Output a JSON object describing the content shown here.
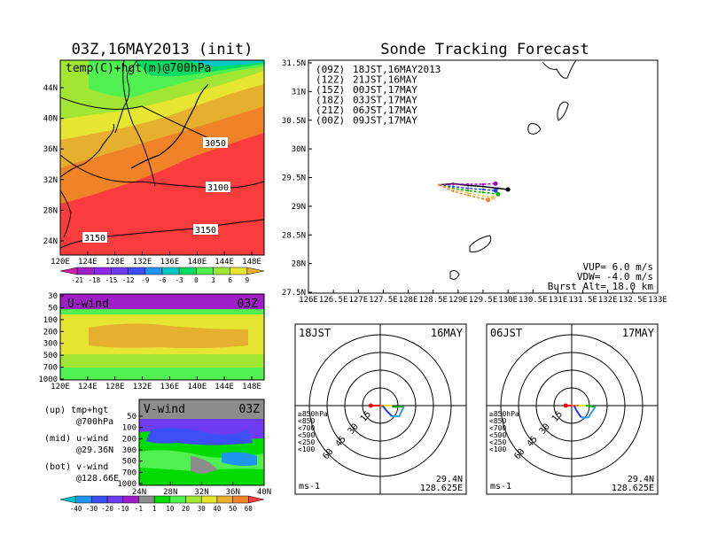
{
  "left_title": "03Z,16MAY2013 (init)",
  "right_title": "Sonde Tracking Forecast",
  "colors": {
    "temp": [
      "#d21ea8",
      "#a01ec8",
      "#8c28e6",
      "#6e3cf0",
      "#3c50f5",
      "#1e96f0",
      "#00c8c8",
      "#00dc64",
      "#50f050",
      "#a0e632",
      "#e6e632",
      "#e6af2d",
      "#f08228",
      "#fa3c3c"
    ],
    "wind": [
      "#00c8c8",
      "#1e96f0",
      "#3c50f5",
      "#6e3cf0",
      "#a01ec8",
      "#8c8c8c",
      "#00dc00",
      "#50f050",
      "#a0e632",
      "#e6e632",
      "#e6af2d",
      "#f08228",
      "#fa3c3c"
    ],
    "tracks": [
      "#000000",
      "#a000c8",
      "#1e3cff",
      "#00b400",
      "#f0c850",
      "#f08228"
    ]
  },
  "map_panel": {
    "label": "temp(C)+hgt(m)@700hPa",
    "lat_ticks": [
      "44N",
      "40N",
      "36N",
      "32N",
      "28N",
      "24N"
    ],
    "lon_ticks": [
      "120E",
      "124E",
      "128E",
      "132E",
      "136E",
      "140E",
      "144E",
      "148E"
    ],
    "contour_labels": [
      "3050",
      "3100",
      "3150",
      "3150"
    ],
    "colorbar_labels": [
      "-21",
      "-18",
      "-15",
      "-12",
      "-9",
      "-6",
      "-3",
      "0",
      "3",
      "6",
      "9"
    ]
  },
  "u_panel": {
    "label": "U-wind",
    "time": "03Z",
    "p_ticks": [
      "30",
      "50",
      "100",
      "200",
      "300",
      "500",
      "700",
      "1000"
    ],
    "lon_ticks": [
      "120E",
      "124E",
      "128E",
      "132E",
      "136E",
      "140E",
      "144E",
      "148E"
    ]
  },
  "v_panel": {
    "label": "V-wind",
    "time": "03Z",
    "p_ticks": [
      "50",
      "100",
      "200",
      "300",
      "500",
      "700",
      "1000"
    ],
    "lat_ticks": [
      "24N",
      "28N",
      "32N",
      "36N",
      "40N"
    ]
  },
  "legend_notes": [
    {
      "line1": "(up) tmp+hgt",
      "line2": "@700hPa"
    },
    {
      "line1": "(mid) u-wind",
      "line2": "@29.36N"
    },
    {
      "line1": "(bot) v-wind",
      "line2": "@128.66E"
    }
  ],
  "wind_colorbar_labels": [
    "-40",
    "-30",
    "-20",
    "-10",
    "-1",
    "1",
    "10",
    "20",
    "30",
    "40",
    "50",
    "60"
  ],
  "track_panel": {
    "legend": [
      {
        "code": "(09Z)",
        "time": "18JST,16MAY2013"
      },
      {
        "code": "(12Z)",
        "time": "21JST,16MAY"
      },
      {
        "code": "(15Z)",
        "time": "00JST,17MAY"
      },
      {
        "code": "(18Z)",
        "time": "03JST,17MAY"
      },
      {
        "code": "(21Z)",
        "time": "06JST,17MAY"
      },
      {
        "code": "(00Z)",
        "time": "09JST,17MAY"
      }
    ],
    "lat_ticks": [
      "31.5N",
      "31N",
      "30.5N",
      "30N",
      "29.5N",
      "29N",
      "28.5N",
      "28N",
      "27.5N"
    ],
    "lon_ticks": [
      "126E",
      "126.5E",
      "127E",
      "127.5E",
      "128E",
      "128.5E",
      "129E",
      "129.5E",
      "130E",
      "130.5E",
      "131E",
      "131.5E",
      "132E",
      "132.5E",
      "133E"
    ],
    "params": [
      "VUP= 6.0 m/s",
      "VDW= -4.0 m/s",
      "Burst Alt= 18.0 km"
    ]
  },
  "hodographs": [
    {
      "time": "18JST",
      "date": "16MAY",
      "lat": "29.4N",
      "lon": "128.625E",
      "unit": "ms-1",
      "rings": [
        "15",
        "30",
        "45",
        "60"
      ]
    },
    {
      "time": "06JST",
      "date": "17MAY",
      "lat": "29.4N",
      "lon": "128.625E",
      "unit": "ms-1",
      "rings": [
        "15",
        "30",
        "45",
        "60"
      ]
    }
  ],
  "hodo_levels": [
    "≥850hPa",
    "<850",
    "<700",
    "<500",
    "<250",
    "<100"
  ],
  "hodo_level_colors": [
    "#ff0000",
    "#f08228",
    "#e6e632",
    "#00b400",
    "#1ea0ff",
    "#1e3cff"
  ],
  "chart_data": [
    {
      "type": "heatmap",
      "title": "temp(C)+hgt(m)@700hPa",
      "x_range": [
        120,
        150
      ],
      "y_range": [
        22,
        48
      ],
      "xlabel": "",
      "ylabel": "",
      "colorbar": [
        -21,
        -18,
        -15,
        -12,
        -9,
        -6,
        -3,
        0,
        3,
        6,
        9
      ],
      "height_contours": [
        3050,
        3100,
        3150
      ]
    },
    {
      "type": "heatmap",
      "title": "U-wind",
      "x_range": [
        120,
        150
      ],
      "y_levels_hPa": [
        30,
        50,
        100,
        200,
        300,
        500,
        700,
        1000
      ]
    },
    {
      "type": "heatmap",
      "title": "V-wind",
      "x_range": [
        24,
        40
      ],
      "y_levels_hPa": [
        50,
        100,
        200,
        300,
        500,
        700,
        1000
      ],
      "colorbar": [
        -40,
        -30,
        -20,
        -10,
        -1,
        1,
        10,
        20,
        30,
        40,
        50,
        60
      ]
    },
    {
      "type": "line",
      "title": "Sonde Tracking Forecast",
      "xlim": [
        126,
        133
      ],
      "ylim": [
        27.5,
        31.5
      ],
      "series": [
        {
          "name": "(09Z) 18JST,16MAY2013",
          "lon": [
            128.62,
            128.9,
            129.2,
            129.5,
            129.8,
            130.0
          ],
          "lat": [
            29.36,
            29.38,
            29.35,
            29.33,
            29.3,
            29.28
          ]
        },
        {
          "name": "(12Z) 21JST,16MAY",
          "lon": [
            128.62,
            128.9,
            129.2,
            129.5,
            129.75
          ],
          "lat": [
            29.36,
            29.37,
            29.37,
            29.37,
            29.38
          ]
        },
        {
          "name": "(15Z) 00JST,17MAY",
          "lon": [
            128.62,
            128.9,
            129.2,
            129.5,
            129.75
          ],
          "lat": [
            29.36,
            29.33,
            29.3,
            29.28,
            29.26
          ]
        },
        {
          "name": "(18Z) 03JST,17MAY",
          "lon": [
            128.62,
            128.9,
            129.2,
            129.5,
            129.8
          ],
          "lat": [
            29.36,
            29.3,
            29.26,
            29.23,
            29.2
          ]
        },
        {
          "name": "(21Z) 06JST,17MAY",
          "lon": [
            128.62,
            128.9,
            129.2,
            129.5,
            129.7
          ],
          "lat": [
            29.36,
            29.28,
            29.22,
            29.17,
            29.14
          ]
        },
        {
          "name": "(00Z) 09JST,17MAY",
          "lon": [
            128.62,
            128.9,
            129.2,
            129.5,
            129.6
          ],
          "lat": [
            29.36,
            29.25,
            29.18,
            29.12,
            29.1
          ]
        }
      ],
      "params": {
        "VUP": 6.0,
        "VDW": -4.0,
        "burst_alt_km": 18.0
      }
    },
    {
      "type": "line",
      "title": "18JST 16MAY hodograph",
      "rings": [
        15,
        30,
        45,
        60
      ],
      "levels": [
        {
          "level": "≥850hPa",
          "u": [
            -8,
            -4,
            0
          ]
        },
        {
          "level": "<850",
          "u": [
            0,
            2
          ],
          "v": [
            0,
            -1
          ]
        },
        {
          "level": "<700",
          "u": [
            2,
            10
          ]
        },
        {
          "level": "<500",
          "u": [
            10,
            18,
            20
          ],
          "v": [
            -1,
            -1,
            -1
          ]
        },
        {
          "level": "<250",
          "u": [
            20,
            16,
            10
          ],
          "v": [
            -1,
            -9,
            -9
          ]
        },
        {
          "level": "<100",
          "u": [
            10,
            5,
            2
          ],
          "v": [
            -9,
            -4,
            0
          ]
        }
      ]
    },
    {
      "type": "line",
      "title": "06JST 17MAY hodograph",
      "rings": [
        15,
        30,
        45,
        60
      ],
      "levels": [
        {
          "level": "≥850hPa",
          "u": [
            -5,
            -2,
            0
          ]
        },
        {
          "level": "<850",
          "u": [
            0,
            6
          ],
          "v": [
            0,
            0
          ]
        },
        {
          "level": "<700",
          "u": [
            6,
            12
          ]
        },
        {
          "level": "<500",
          "u": [
            12,
            20
          ],
          "v": [
            0,
            -1
          ]
        },
        {
          "level": "<250",
          "u": [
            20,
            14,
            8
          ],
          "v": [
            -1,
            -10,
            -10
          ]
        },
        {
          "level": "<100",
          "u": [
            8,
            4,
            2
          ],
          "v": [
            -10,
            -4,
            0
          ]
        }
      ]
    }
  ]
}
